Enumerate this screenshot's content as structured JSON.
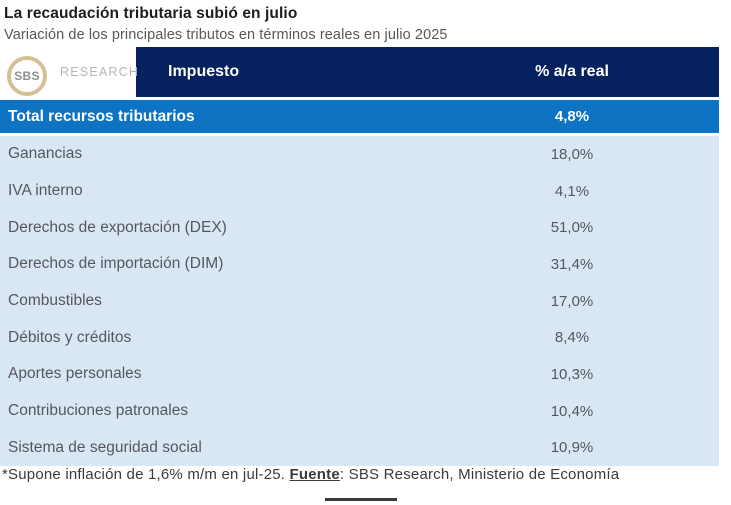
{
  "header": {
    "title": "La recaudación tributaria subió en julio",
    "subtitle": "Variación de los principales tributos en términos reales en julio 2025"
  },
  "branding": {
    "logo_text": "SBS",
    "brand_text": "RESEARCH"
  },
  "colors": {
    "header_navy": "#05215e",
    "total_row_blue": "#0d73c2",
    "rows_light_blue": "#d9e7f5",
    "logo_ring_gold": "#d5bf94"
  },
  "table": {
    "columns": [
      "Impuesto",
      "% a/a real"
    ],
    "total": {
      "label": "Total recursos tributarios",
      "value": "4,8%"
    },
    "rows": [
      {
        "label": "Ganancias",
        "value": "18,0%"
      },
      {
        "label": "IVA interno",
        "value": "4,1%"
      },
      {
        "label": "Derechos de exportación (DEX)",
        "value": "51,0%"
      },
      {
        "label": "Derechos de importación (DIM)",
        "value": "31,4%"
      },
      {
        "label": "Combustibles",
        "value": "17,0%"
      },
      {
        "label": "Débitos y créditos",
        "value": "8,4%"
      },
      {
        "label": "Aportes personales",
        "value": "10,3%"
      },
      {
        "label": "Contribuciones patronales",
        "value": "10,4%"
      },
      {
        "label": "Sistema de seguridad social",
        "value": "10,9%"
      }
    ]
  },
  "footnote": {
    "prefix": "*Supone inflación de 1,6% m/m en jul-25. ",
    "source_label": "Fuente",
    "suffix": ": SBS Research, Ministerio de Economía"
  },
  "chart_data": {
    "type": "table",
    "title": "La recaudación tributaria subió en julio",
    "subtitle": "Variación de los principales tributos en términos reales en julio 2025",
    "columns": [
      "Impuesto",
      "% a/a real"
    ],
    "categories": [
      "Total recursos tributarios",
      "Ganancias",
      "IVA interno",
      "Derechos de exportación (DEX)",
      "Derechos de importación (DIM)",
      "Combustibles",
      "Débitos y créditos",
      "Aportes personales",
      "Contribuciones patronales",
      "Sistema de seguridad social"
    ],
    "values": [
      4.8,
      18.0,
      4.1,
      51.0,
      31.4,
      17.0,
      8.4,
      10.3,
      10.4,
      10.9
    ],
    "value_unit": "% a/a real",
    "highlight_row": "Total recursos tributarios",
    "source": "*Supone inflación de 1,6% m/m en jul-25. Fuente: SBS Research, Ministerio de Economía"
  }
}
